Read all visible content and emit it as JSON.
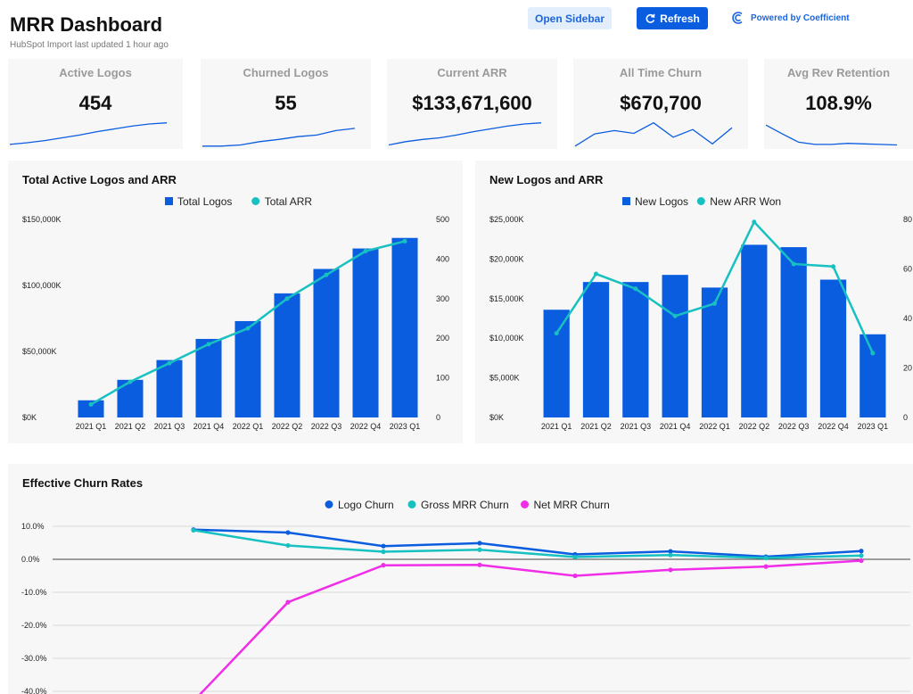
{
  "header": {
    "title": "MRR Dashboard",
    "subtitle": "HubSpot Import last updated 1 hour ago",
    "open_sidebar_label": "Open Sidebar",
    "refresh_label": "Refresh",
    "powered_by_label": "Powered by Coefficient"
  },
  "colors": {
    "primary_blue": "#0b5de0",
    "teal": "#17c1c1",
    "magenta": "#f02ee8",
    "card_bg": "#f7f7f7"
  },
  "kpis": [
    {
      "label": "Active Logos",
      "value": "454",
      "trend": [
        5,
        8,
        12,
        17,
        22,
        28,
        33,
        38,
        42,
        44
      ]
    },
    {
      "label": "Churned Logos",
      "value": "55",
      "trend": [
        2,
        2,
        4,
        10,
        14,
        19,
        22,
        30,
        34
      ]
    },
    {
      "label": "Current ARR",
      "value": "$133,671,600",
      "trend": [
        4,
        10,
        14,
        17,
        22,
        28,
        33,
        38,
        42,
        44
      ]
    },
    {
      "label": "All Time Churn",
      "value": "$670,700",
      "trend": [
        2,
        24,
        30,
        25,
        44,
        18,
        32,
        6,
        35
      ]
    },
    {
      "label": "Avg Rev Retention",
      "value": "108.9%",
      "trend": [
        40,
        24,
        9,
        5,
        5,
        7,
        6,
        5,
        4
      ]
    }
  ],
  "chart_data": [
    {
      "type": "bar",
      "title": "Total Active Logos and ARR",
      "categories": [
        "2021 Q1",
        "2021 Q2",
        "2021 Q3",
        "2021 Q4",
        "2022 Q1",
        "2022 Q2",
        "2022 Q3",
        "2022 Q4",
        "2023 Q1"
      ],
      "series": [
        {
          "name": "Total Logos",
          "type": "bar",
          "axis": "left",
          "values": [
            13000,
            28500,
            43500,
            59500,
            73000,
            94000,
            112500,
            128000,
            136000
          ]
        },
        {
          "name": "Total ARR",
          "type": "line",
          "axis": "right",
          "values": [
            33,
            90,
            137,
            185,
            225,
            300,
            360,
            420,
            445
          ]
        }
      ],
      "left_axis": {
        "ticks": [
          "$150,000K",
          "$100,000K",
          "$50,000K",
          "$0K"
        ],
        "range": [
          0,
          150000
        ]
      },
      "right_axis": {
        "ticks": [
          "500",
          "400",
          "300",
          "200",
          "100",
          "0"
        ],
        "range": [
          0,
          500
        ]
      },
      "legend": "top-center"
    },
    {
      "type": "bar",
      "title": "New Logos and ARR",
      "categories": [
        "2021 Q1",
        "2021 Q2",
        "2021 Q3",
        "2021 Q4",
        "2022 Q1",
        "2022 Q2",
        "2022 Q3",
        "2022 Q4",
        "2023 Q1"
      ],
      "series": [
        {
          "name": "New Logos",
          "type": "bar",
          "axis": "left",
          "values": [
            13600,
            17100,
            17100,
            18000,
            16400,
            21800,
            21500,
            17400,
            10500
          ]
        },
        {
          "name": "New ARR Won",
          "type": "line",
          "axis": "right",
          "values": [
            34,
            58,
            52,
            41,
            46,
            79,
            62,
            61,
            26
          ]
        }
      ],
      "left_axis": {
        "ticks": [
          "$25,000K",
          "$20,000K",
          "$15,000K",
          "$10,000K",
          "$5,000K",
          "$0K"
        ],
        "range": [
          0,
          25000
        ]
      },
      "right_axis": {
        "ticks": [
          "80",
          "60",
          "40",
          "20",
          "0"
        ],
        "range": [
          0,
          80
        ]
      },
      "legend": "top-center"
    },
    {
      "type": "line",
      "title": "Effective Churn Rates",
      "x": [
        1,
        2,
        3,
        4,
        5,
        6,
        7,
        8
      ],
      "series": [
        {
          "name": "Logo Churn",
          "values": [
            9.0,
            8.1,
            4.0,
            4.9,
            1.5,
            2.4,
            0.8,
            2.5
          ]
        },
        {
          "name": "Gross MRR Churn",
          "values": [
            8.8,
            4.2,
            2.3,
            2.9,
            0.7,
            1.3,
            0.4,
            1.1
          ]
        },
        {
          "name": "Net MRR Churn",
          "values": [
            -43.0,
            -13.0,
            -1.8,
            -1.7,
            -5.0,
            -3.2,
            -2.2,
            -0.4
          ]
        }
      ],
      "y_axis": {
        "ticks": [
          "10.0%",
          "0.0%",
          "-10.0%",
          "-20.0%",
          "-30.0%",
          "-40.0%"
        ],
        "range": [
          -42,
          15
        ]
      },
      "legend": "top-center",
      "grid": true
    }
  ]
}
